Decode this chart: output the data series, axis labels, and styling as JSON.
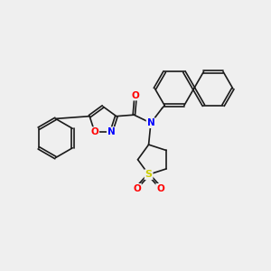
{
  "bg_color": "#efefef",
  "bond_color": "#1a1a1a",
  "atom_colors": {
    "N": "#0000ff",
    "O": "#ff0000",
    "S": "#cccc00",
    "C": "#1a1a1a"
  },
  "font_size": 7.5,
  "line_width": 1.2
}
